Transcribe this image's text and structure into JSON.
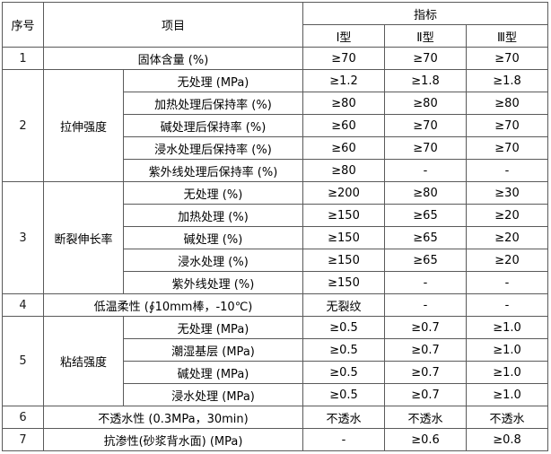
{
  "header": {
    "no": "序号",
    "item": "项目",
    "index": "指标",
    "types": [
      "Ⅰ型",
      "Ⅱ型",
      "Ⅲ型"
    ]
  },
  "rows": [
    {
      "no": "1",
      "label": "固体含量 (%)",
      "values": [
        "≥70",
        "≥70",
        "≥70"
      ]
    },
    {
      "no": "2",
      "label": "拉伸强度",
      "items": [
        {
          "label": "无处理 (MPa)",
          "values": [
            "≥1.2",
            "≥1.8",
            "≥1.8"
          ]
        },
        {
          "label": "加热处理后保持率 (%)",
          "values": [
            "≥80",
            "≥80",
            "≥80"
          ]
        },
        {
          "label": "碱处理后保持率 (%)",
          "values": [
            "≥60",
            "≥70",
            "≥70"
          ]
        },
        {
          "label": "浸水处理后保持率 (%)",
          "values": [
            "≥60",
            "≥70",
            "≥70"
          ]
        },
        {
          "label": "紫外线处理后保持率 (%)",
          "values": [
            "≥80",
            "-",
            "-"
          ]
        }
      ]
    },
    {
      "no": "3",
      "label": "断裂伸长率",
      "items": [
        {
          "label": "无处理 (%)",
          "values": [
            "≥200",
            "≥80",
            "≥30"
          ]
        },
        {
          "label": "加热处理 (%)",
          "values": [
            "≥150",
            "≥65",
            "≥20"
          ]
        },
        {
          "label": "碱处理 (%)",
          "values": [
            "≥150",
            "≥65",
            "≥20"
          ]
        },
        {
          "label": "浸水处理 (%)",
          "values": [
            "≥150",
            "≥65",
            "≥20"
          ]
        },
        {
          "label": "紫外线处理 (%)",
          "values": [
            "≥150",
            "-",
            "-"
          ]
        }
      ]
    },
    {
      "no": "4",
      "label": "低温柔性 (∮10mm棒，-10℃)",
      "values": [
        "无裂纹",
        "-",
        "-"
      ]
    },
    {
      "no": "5",
      "label": "粘结强度",
      "items": [
        {
          "label": "无处理 (MPa)",
          "values": [
            "≥0.5",
            "≥0.7",
            "≥1.0"
          ]
        },
        {
          "label": "潮湿基层 (MPa)",
          "values": [
            "≥0.5",
            "≥0.7",
            "≥1.0"
          ]
        },
        {
          "label": "碱处理 (MPa)",
          "values": [
            "≥0.5",
            "≥0.7",
            "≥1.0"
          ]
        },
        {
          "label": "浸水处理 (MPa)",
          "values": [
            "≥0.5",
            "≥0.7",
            "≥1.0"
          ]
        }
      ]
    },
    {
      "no": "6",
      "label": "不透水性 (0.3MPa，30min)",
      "values": [
        "不透水",
        "不透水",
        "不透水"
      ]
    },
    {
      "no": "7",
      "label": "抗渗性(砂浆背水面) (MPa)",
      "values": [
        "-",
        "≥0.6",
        "≥0.8"
      ]
    }
  ]
}
